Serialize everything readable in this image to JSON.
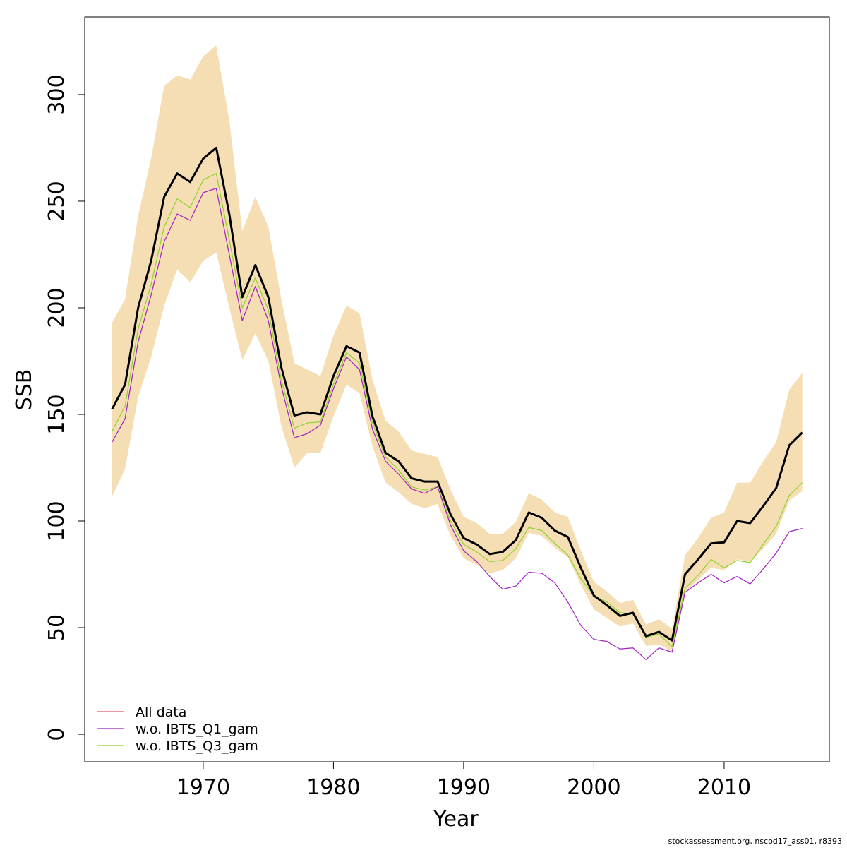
{
  "chart_data": {
    "type": "line",
    "xlabel": "Year",
    "ylabel": "SSB",
    "footer": "stockassessment.org, nscod17_ass01, r8393",
    "x": [
      1963,
      1964,
      1965,
      1966,
      1967,
      1968,
      1969,
      1970,
      1971,
      1972,
      1973,
      1974,
      1975,
      1976,
      1977,
      1978,
      1979,
      1980,
      1981,
      1982,
      1983,
      1984,
      1985,
      1986,
      1987,
      1988,
      1989,
      1990,
      1991,
      1992,
      1993,
      1994,
      1995,
      1996,
      1997,
      1998,
      1999,
      2000,
      2001,
      2002,
      2003,
      2004,
      2005,
      2006,
      2007,
      2008,
      2009,
      2010,
      2011,
      2012,
      2013,
      2014,
      2015,
      2016
    ],
    "band": {
      "color": "#f5deb3",
      "upper": [
        193,
        204,
        243,
        270,
        304,
        309,
        307,
        318,
        323,
        288,
        236,
        252,
        238,
        204,
        174,
        171,
        168,
        187,
        201,
        197.5,
        166,
        147,
        142,
        133,
        131.5,
        130,
        114.5,
        102,
        99,
        94,
        94,
        99.5,
        113,
        110,
        104,
        102,
        86,
        71.5,
        67,
        61.5,
        63,
        51.5,
        54,
        49.5,
        84,
        92,
        101.5,
        104,
        118,
        118,
        128,
        137,
        161.5,
        169.5
      ],
      "lower": [
        111.5,
        124.5,
        158,
        177,
        201,
        218,
        212,
        222,
        226,
        200,
        175.5,
        188,
        175,
        144.5,
        125,
        132,
        132,
        149,
        164,
        160,
        135,
        118,
        113.5,
        108,
        106,
        108,
        93,
        82.5,
        79.5,
        75.5,
        77,
        82.5,
        94.5,
        93,
        87.5,
        83,
        70,
        58.5,
        54.5,
        50.5,
        52,
        41.5,
        42,
        39,
        66.5,
        72.5,
        78,
        77,
        82,
        81,
        87,
        94,
        109.5,
        114
      ]
    },
    "series": [
      {
        "name": "All data",
        "color": "#df536b",
        "line_color": "#000000",
        "values": [
          152.5,
          164,
          200,
          222,
          252,
          263,
          259,
          270,
          275,
          244,
          205,
          220,
          205,
          172,
          149.5,
          151,
          150,
          168,
          182,
          179,
          149,
          132,
          128,
          120,
          118.5,
          118.5,
          103,
          92,
          89,
          84.5,
          85.5,
          91,
          104,
          101.5,
          95.5,
          92.5,
          78,
          65,
          60.5,
          55.5,
          57,
          46,
          48,
          44,
          75,
          82,
          89.5,
          90,
          100,
          99,
          107,
          115.5,
          135.5,
          141.5
        ]
      },
      {
        "name": "w.o. IBTS_Q1_gam",
        "color": "#a020c0",
        "values": [
          137,
          148,
          184,
          206,
          231,
          244,
          241,
          254,
          256,
          225,
          194,
          210,
          194,
          163,
          139,
          141,
          145,
          162,
          177,
          171,
          143,
          128,
          122,
          115,
          113,
          116,
          98,
          86,
          81,
          74,
          68,
          69.5,
          76,
          75.5,
          71,
          62,
          51,
          44.5,
          43.5,
          40,
          40.5,
          35,
          40.5,
          38.5,
          66.5,
          71,
          75,
          71,
          74,
          70.5,
          77.5,
          85,
          95,
          96.5
        ]
      },
      {
        "name": "w.o. IBTS_Q3_gam",
        "color": "#8cd22c",
        "values": [
          142,
          154,
          190,
          211,
          238,
          251,
          247,
          260,
          263,
          232,
          200,
          214,
          199,
          166,
          143.5,
          146,
          146.5,
          164,
          179,
          174,
          146,
          130,
          124,
          116,
          114.5,
          116,
          100,
          89,
          85.5,
          81,
          81.5,
          87,
          97,
          95.5,
          89.5,
          84,
          73,
          65,
          62,
          57,
          56.5,
          45.5,
          47,
          41,
          68.5,
          74.5,
          82,
          78,
          81.5,
          80.5,
          89,
          97.5,
          112,
          118
        ]
      }
    ],
    "xlim": [
      1960.9,
      2018.08
    ],
    "ylim": [
      -12.9,
      336.4
    ],
    "xticks": [
      1970,
      1980,
      1990,
      2000,
      2010
    ],
    "yticks": [
      0,
      50,
      100,
      150,
      200,
      250,
      300
    ],
    "legend": "bottom-left"
  }
}
